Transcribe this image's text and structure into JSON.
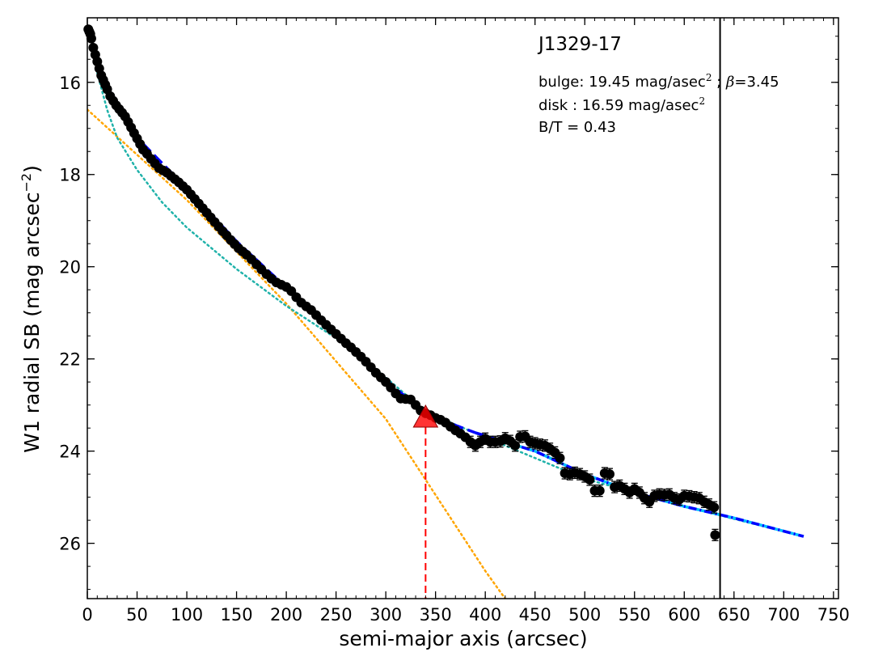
{
  "annotations": {
    "title": "J1329-17",
    "bulge_prefix": "bulge: ",
    "bulge_value": "19.45 mag/asec",
    "bulge_sup": "2",
    "bulge_sep": " ; ",
    "beta_symbol": "β",
    "beta_value": "=3.45",
    "disk_prefix": "disk  : ",
    "disk_value": "16.59 mag/asec",
    "disk_sup": "2",
    "bt_text": "B/T = 0.43"
  },
  "chart_data": {
    "type": "scatter",
    "xlabel": "semi-major axis (arcsec)",
    "ylabel_main": "W1 radial SB (mag arcsec",
    "ylabel_sup": "−2",
    "ylabel_close": ")",
    "xlim": [
      0,
      755
    ],
    "ylim": [
      27.2,
      14.6
    ],
    "y_inverted": true,
    "x_ticks": [
      0,
      50,
      100,
      150,
      200,
      250,
      300,
      350,
      400,
      450,
      500,
      550,
      600,
      650,
      700,
      750
    ],
    "y_ticks": [
      16,
      18,
      20,
      22,
      24,
      26
    ],
    "x_minor_step": 10,
    "y_minor_step": 0.5,
    "grid": false,
    "colors": {
      "data": "#000000",
      "total_fit": "#0000ff",
      "bulge": "#ffa500",
      "disk": "#20b2aa",
      "outer_fit": "#00bfff",
      "marker": "#ff0000",
      "vline": "#000000"
    },
    "vertical_line_x": 636,
    "marker_point": {
      "x": 340,
      "y": 23.27
    },
    "data_points": [
      {
        "x": 1,
        "y": 14.85
      },
      {
        "x": 2,
        "y": 14.9
      },
      {
        "x": 3,
        "y": 14.95
      },
      {
        "x": 4,
        "y": 15.05
      },
      {
        "x": 6,
        "y": 15.25
      },
      {
        "x": 8,
        "y": 15.4
      },
      {
        "x": 10,
        "y": 15.55
      },
      {
        "x": 12,
        "y": 15.7
      },
      {
        "x": 14,
        "y": 15.85
      },
      {
        "x": 16,
        "y": 15.95
      },
      {
        "x": 18,
        "y": 16.05
      },
      {
        "x": 20,
        "y": 16.15
      },
      {
        "x": 23,
        "y": 16.3
      },
      {
        "x": 26,
        "y": 16.4
      },
      {
        "x": 29,
        "y": 16.5
      },
      {
        "x": 32,
        "y": 16.58
      },
      {
        "x": 35,
        "y": 16.66
      },
      {
        "x": 38,
        "y": 16.74
      },
      {
        "x": 41,
        "y": 16.86
      },
      {
        "x": 44,
        "y": 16.98
      },
      {
        "x": 47,
        "y": 17.1
      },
      {
        "x": 50,
        "y": 17.22
      },
      {
        "x": 53,
        "y": 17.34
      },
      {
        "x": 56,
        "y": 17.46
      },
      {
        "x": 60,
        "y": 17.55
      },
      {
        "x": 64,
        "y": 17.66
      },
      {
        "x": 68,
        "y": 17.76
      },
      {
        "x": 72,
        "y": 17.86
      },
      {
        "x": 76,
        "y": 17.91
      },
      {
        "x": 80,
        "y": 17.96
      },
      {
        "x": 84,
        "y": 18.03
      },
      {
        "x": 88,
        "y": 18.1
      },
      {
        "x": 92,
        "y": 18.17
      },
      {
        "x": 96,
        "y": 18.25
      },
      {
        "x": 100,
        "y": 18.33
      },
      {
        "x": 104,
        "y": 18.43
      },
      {
        "x": 108,
        "y": 18.53
      },
      {
        "x": 112,
        "y": 18.63
      },
      {
        "x": 116,
        "y": 18.73
      },
      {
        "x": 120,
        "y": 18.83
      },
      {
        "x": 124,
        "y": 18.93
      },
      {
        "x": 128,
        "y": 19.03
      },
      {
        "x": 132,
        "y": 19.13
      },
      {
        "x": 136,
        "y": 19.23
      },
      {
        "x": 140,
        "y": 19.32
      },
      {
        "x": 144,
        "y": 19.42
      },
      {
        "x": 148,
        "y": 19.51
      },
      {
        "x": 152,
        "y": 19.6
      },
      {
        "x": 156,
        "y": 19.67
      },
      {
        "x": 160,
        "y": 19.74
      },
      {
        "x": 165,
        "y": 19.84
      },
      {
        "x": 170,
        "y": 19.95
      },
      {
        "x": 175,
        "y": 20.06
      },
      {
        "x": 180,
        "y": 20.16
      },
      {
        "x": 185,
        "y": 20.26
      },
      {
        "x": 190,
        "y": 20.34
      },
      {
        "x": 195,
        "y": 20.39
      },
      {
        "x": 200,
        "y": 20.44
      },
      {
        "x": 205,
        "y": 20.53
      },
      {
        "x": 210,
        "y": 20.66
      },
      {
        "x": 215,
        "y": 20.78
      },
      {
        "x": 220,
        "y": 20.86
      },
      {
        "x": 225,
        "y": 20.94
      },
      {
        "x": 230,
        "y": 21.05
      },
      {
        "x": 235,
        "y": 21.16
      },
      {
        "x": 240,
        "y": 21.26
      },
      {
        "x": 245,
        "y": 21.36
      },
      {
        "x": 250,
        "y": 21.46
      },
      {
        "x": 255,
        "y": 21.56
      },
      {
        "x": 260,
        "y": 21.66
      },
      {
        "x": 265,
        "y": 21.75
      },
      {
        "x": 270,
        "y": 21.85
      },
      {
        "x": 275,
        "y": 21.95
      },
      {
        "x": 280,
        "y": 22.06
      },
      {
        "x": 285,
        "y": 22.18
      },
      {
        "x": 290,
        "y": 22.3
      },
      {
        "x": 295,
        "y": 22.4
      },
      {
        "x": 300,
        "y": 22.5
      },
      {
        "x": 305,
        "y": 22.62
      },
      {
        "x": 310,
        "y": 22.75
      },
      {
        "x": 315,
        "y": 22.86
      },
      {
        "x": 320,
        "y": 22.87
      },
      {
        "x": 325,
        "y": 22.88
      },
      {
        "x": 330,
        "y": 23.0
      },
      {
        "x": 335,
        "y": 23.12
      },
      {
        "x": 340,
        "y": 23.18
      },
      {
        "x": 345,
        "y": 23.22
      },
      {
        "x": 350,
        "y": 23.28
      },
      {
        "x": 355,
        "y": 23.32
      },
      {
        "x": 360,
        "y": 23.38
      },
      {
        "x": 365,
        "y": 23.47
      },
      {
        "x": 370,
        "y": 23.55
      },
      {
        "x": 375,
        "y": 23.62
      },
      {
        "x": 380,
        "y": 23.7
      },
      {
        "x": 385,
        "y": 23.8
      },
      {
        "x": 390,
        "y": 23.88
      },
      {
        "x": 395,
        "y": 23.8
      },
      {
        "x": 400,
        "y": 23.73
      },
      {
        "x": 405,
        "y": 23.8
      },
      {
        "x": 410,
        "y": 23.8
      },
      {
        "x": 415,
        "y": 23.79
      },
      {
        "x": 420,
        "y": 23.72
      },
      {
        "x": 425,
        "y": 23.78
      },
      {
        "x": 430,
        "y": 23.88
      },
      {
        "x": 435,
        "y": 23.69
      },
      {
        "x": 440,
        "y": 23.68
      },
      {
        "x": 445,
        "y": 23.8
      },
      {
        "x": 450,
        "y": 23.83
      },
      {
        "x": 455,
        "y": 23.86
      },
      {
        "x": 460,
        "y": 23.88
      },
      {
        "x": 465,
        "y": 23.95
      },
      {
        "x": 470,
        "y": 24.03
      },
      {
        "x": 475,
        "y": 24.15
      },
      {
        "x": 480,
        "y": 24.48
      },
      {
        "x": 485,
        "y": 24.5
      },
      {
        "x": 490,
        "y": 24.47
      },
      {
        "x": 495,
        "y": 24.5
      },
      {
        "x": 500,
        "y": 24.55
      },
      {
        "x": 505,
        "y": 24.62
      },
      {
        "x": 510,
        "y": 24.86
      },
      {
        "x": 515,
        "y": 24.86
      },
      {
        "x": 520,
        "y": 24.48
      },
      {
        "x": 525,
        "y": 24.5
      },
      {
        "x": 530,
        "y": 24.78
      },
      {
        "x": 535,
        "y": 24.75
      },
      {
        "x": 540,
        "y": 24.82
      },
      {
        "x": 545,
        "y": 24.9
      },
      {
        "x": 550,
        "y": 24.82
      },
      {
        "x": 555,
        "y": 24.9
      },
      {
        "x": 560,
        "y": 25.02
      },
      {
        "x": 565,
        "y": 25.1
      },
      {
        "x": 570,
        "y": 24.97
      },
      {
        "x": 575,
        "y": 24.94
      },
      {
        "x": 580,
        "y": 24.95
      },
      {
        "x": 585,
        "y": 24.94
      },
      {
        "x": 590,
        "y": 25.02
      },
      {
        "x": 595,
        "y": 25.05
      },
      {
        "x": 600,
        "y": 24.97
      },
      {
        "x": 605,
        "y": 24.98
      },
      {
        "x": 610,
        "y": 25.0
      },
      {
        "x": 615,
        "y": 25.02
      },
      {
        "x": 620,
        "y": 25.1
      },
      {
        "x": 625,
        "y": 25.16
      },
      {
        "x": 630,
        "y": 25.22
      },
      {
        "x": 631,
        "y": 25.82
      }
    ],
    "total_fit": [
      {
        "x": 5,
        "y": 15.15
      },
      {
        "x": 20,
        "y": 16.1
      },
      {
        "x": 50,
        "y": 17.2
      },
      {
        "x": 100,
        "y": 18.3
      },
      {
        "x": 150,
        "y": 19.45
      },
      {
        "x": 200,
        "y": 20.45
      },
      {
        "x": 250,
        "y": 21.45
      },
      {
        "x": 300,
        "y": 22.45
      },
      {
        "x": 340,
        "y": 23.2
      },
      {
        "x": 390,
        "y": 23.6
      },
      {
        "x": 450,
        "y": 24.0
      },
      {
        "x": 500,
        "y": 24.5
      },
      {
        "x": 550,
        "y": 24.9
      },
      {
        "x": 600,
        "y": 25.2
      },
      {
        "x": 650,
        "y": 25.45
      },
      {
        "x": 720,
        "y": 25.85
      }
    ],
    "bulge_curve": [
      {
        "x": 0,
        "y": 16.59
      },
      {
        "x": 100,
        "y": 18.55
      },
      {
        "x": 200,
        "y": 20.8
      },
      {
        "x": 300,
        "y": 23.3
      },
      {
        "x": 400,
        "y": 26.6
      },
      {
        "x": 420,
        "y": 27.2
      }
    ],
    "disk_curve": [
      {
        "x": 10,
        "y": 15.8
      },
      {
        "x": 20,
        "y": 16.6
      },
      {
        "x": 30,
        "y": 17.2
      },
      {
        "x": 50,
        "y": 17.9
      },
      {
        "x": 75,
        "y": 18.6
      },
      {
        "x": 100,
        "y": 19.15
      },
      {
        "x": 150,
        "y": 20.05
      },
      {
        "x": 200,
        "y": 20.85
      },
      {
        "x": 250,
        "y": 21.55
      },
      {
        "x": 300,
        "y": 22.4
      },
      {
        "x": 340,
        "y": 23.15
      },
      {
        "x": 400,
        "y": 23.7
      },
      {
        "x": 500,
        "y": 24.6
      },
      {
        "x": 600,
        "y": 25.2
      },
      {
        "x": 720,
        "y": 25.85
      }
    ]
  }
}
